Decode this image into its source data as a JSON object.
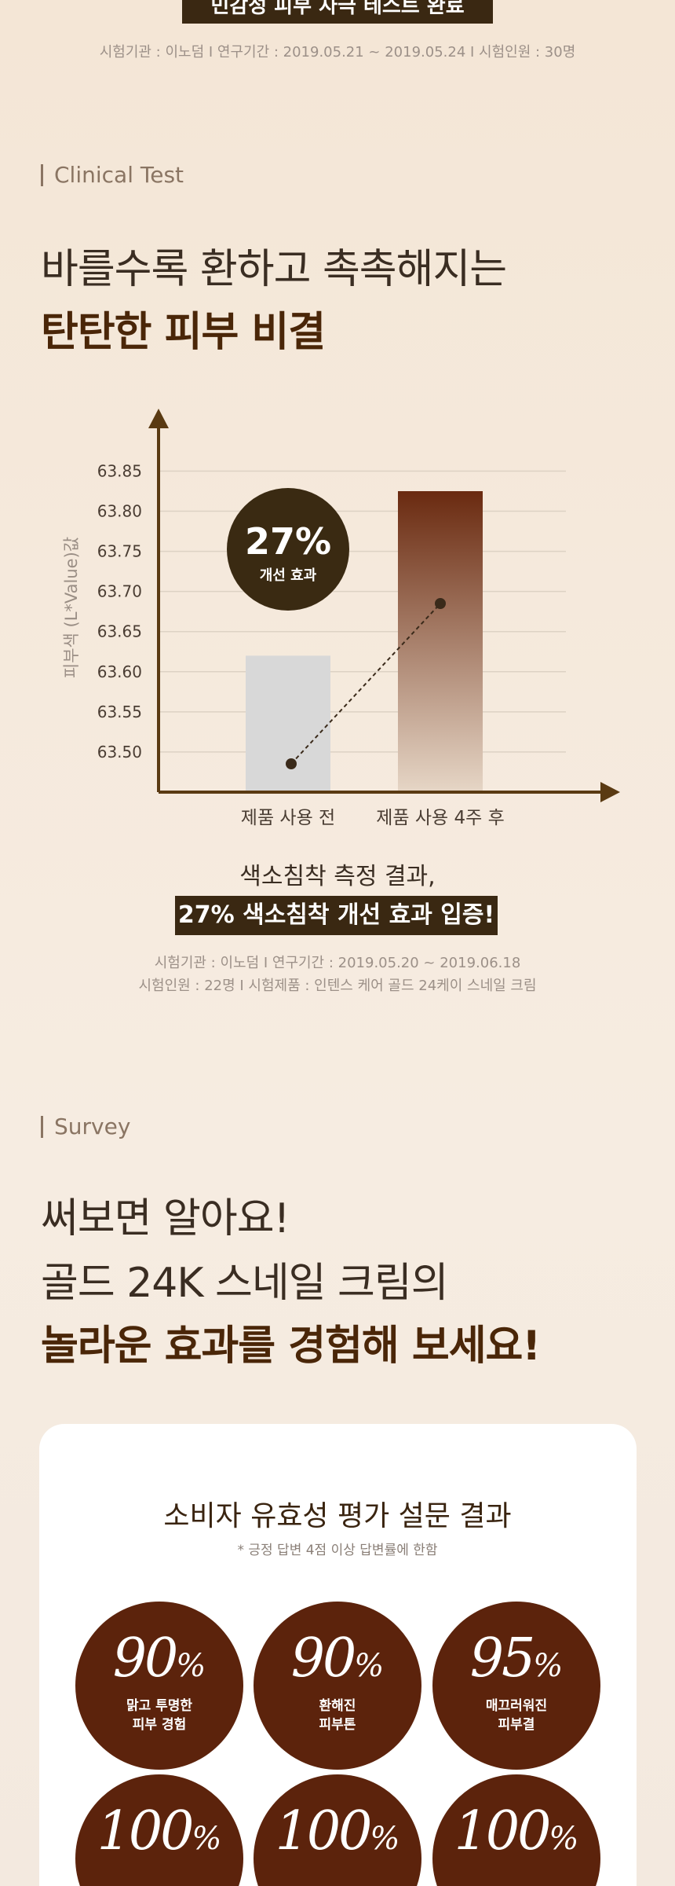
{
  "top_banner": {
    "title": "민감성 피부 자극 테스트 완료",
    "note": "시험기관 : 이노덤 I 연구기간 : 2019.05.21 ~ 2019.05.24 I 시험인원 : 30명"
  },
  "clinical": {
    "label": "Clinical Test",
    "heading_line1": "바를수록 환하고 촉촉해지는",
    "heading_line2": "탄탄한 피부 비결",
    "chart_data": {
      "type": "bar",
      "y_label": "피부색 (L*Value)값",
      "categories": [
        "제품 사용 전",
        "제품 사용 4주 후"
      ],
      "values": [
        63.62,
        63.825
      ],
      "colors": [
        "#d8d8d8",
        "#6a2a10"
      ],
      "ylim": [
        63.45,
        63.92
      ],
      "yticks": [
        {
          "value": 63.5,
          "label": "63.50"
        },
        63.55,
        {
          "value": 63.6,
          "label": "63.60"
        },
        63.65,
        {
          "value": 63.7,
          "label": "63.70"
        },
        63.75,
        {
          "value": 63.8,
          "label": "63.80"
        },
        63.85
      ],
      "grid": true,
      "annotation": {
        "value": "27%",
        "label": "개선 효과"
      }
    },
    "result_line1": "색소침착 측정 결과,",
    "result_line2": "27% 색소침착 개선 효과 입증!",
    "note_line1": "시험기관 : 이노덤 I 연구기간 : 2019.05.20 ~ 2019.06.18",
    "note_line2": "시험인원 : 22명 I 시험제품 : 인텐스 케어 골드 24케이 스네일 크림"
  },
  "survey": {
    "label": "Survey",
    "heading_line1": "써보면 알아요!",
    "heading_line2": "골드 24K 스네일 크림의",
    "heading_line3": "놀라운 효과를 경험해 보세요!",
    "card_title": "소비자 유효성 평가 설문 결과",
    "card_note": "* 긍정 답변 4점 이상 답변률에 한함",
    "items": [
      {
        "value": "90",
        "unit": "%",
        "label": "맑고 투명한\n피부 경험"
      },
      {
        "value": "90",
        "unit": "%",
        "label": "환해진\n피부톤"
      },
      {
        "value": "95",
        "unit": "%",
        "label": "매끄러워진\n피부결"
      },
      {
        "value": "100",
        "unit": "%"
      },
      {
        "value": "100",
        "unit": "%"
      },
      {
        "value": "100",
        "unit": "%"
      }
    ]
  }
}
